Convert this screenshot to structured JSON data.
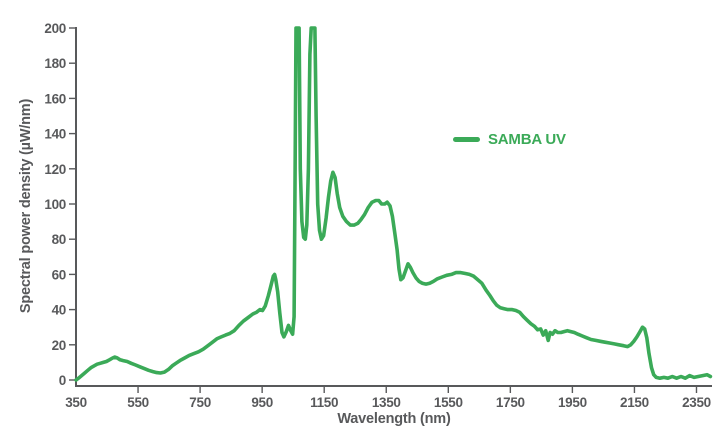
{
  "chart_data": {
    "type": "line",
    "title": "",
    "x_axis": {
      "label": "Wavelength (nm)",
      "min": 350,
      "max": 2400,
      "tick_labels": [
        350,
        550,
        750,
        950,
        1150,
        1350,
        1550,
        1750,
        1950,
        2150,
        2350
      ]
    },
    "y_axis": {
      "label": "Spectral power density (µW/nm)",
      "min": 0,
      "max": 200,
      "tick_labels": [
        0,
        20,
        40,
        60,
        80,
        100,
        120,
        140,
        160,
        180,
        200
      ]
    },
    "legend": {
      "position": "inside-upper-right",
      "entries": [
        "SAMBA UV"
      ]
    },
    "grid": "off",
    "annotations": "twin pump/Raman peaks near 1064 nm and 1114 nm exceed the 200 µW/nm axis limit and are clipped at the plot top",
    "series": [
      {
        "name": "SAMBA UV",
        "color": "#3BAA58",
        "points": [
          [
            350,
            0
          ],
          [
            358,
            1
          ],
          [
            368,
            2.5
          ],
          [
            378,
            4
          ],
          [
            388,
            5.5
          ],
          [
            398,
            7
          ],
          [
            408,
            8
          ],
          [
            418,
            9
          ],
          [
            428,
            9.5
          ],
          [
            438,
            10
          ],
          [
            448,
            10.5
          ],
          [
            458,
            11.5
          ],
          [
            468,
            12.5
          ],
          [
            475,
            13
          ],
          [
            483,
            12.5
          ],
          [
            492,
            11.5
          ],
          [
            502,
            11
          ],
          [
            515,
            10.5
          ],
          [
            528,
            9.5
          ],
          [
            542,
            8.5
          ],
          [
            556,
            7.5
          ],
          [
            570,
            6.5
          ],
          [
            584,
            5.5
          ],
          [
            598,
            4.8
          ],
          [
            610,
            4.2
          ],
          [
            622,
            4
          ],
          [
            635,
            4.5
          ],
          [
            648,
            6
          ],
          [
            660,
            8
          ],
          [
            672,
            9.5
          ],
          [
            685,
            11
          ],
          [
            700,
            12.5
          ],
          [
            715,
            14
          ],
          [
            730,
            15
          ],
          [
            745,
            16
          ],
          [
            760,
            17.5
          ],
          [
            775,
            19.5
          ],
          [
            790,
            21.5
          ],
          [
            805,
            23.5
          ],
          [
            818,
            24.5
          ],
          [
            832,
            25.5
          ],
          [
            846,
            26.5
          ],
          [
            860,
            28
          ],
          [
            875,
            31
          ],
          [
            890,
            33.5
          ],
          [
            905,
            35.5
          ],
          [
            920,
            37.5
          ],
          [
            932,
            38.5
          ],
          [
            943,
            40
          ],
          [
            951,
            39.5
          ],
          [
            960,
            42
          ],
          [
            970,
            48
          ],
          [
            979,
            54
          ],
          [
            986,
            59
          ],
          [
            990,
            60
          ],
          [
            994,
            57
          ],
          [
            1000,
            50
          ],
          [
            1007,
            38
          ],
          [
            1014,
            27
          ],
          [
            1020,
            24.5
          ],
          [
            1028,
            27.5
          ],
          [
            1035,
            31
          ],
          [
            1042,
            28
          ],
          [
            1048,
            26
          ],
          [
            1053,
            36
          ],
          [
            1056,
            110
          ],
          [
            1059,
            200
          ],
          [
            1069,
            200
          ],
          [
            1073,
            120
          ],
          [
            1078,
            90
          ],
          [
            1084,
            81
          ],
          [
            1089,
            80
          ],
          [
            1094,
            88
          ],
          [
            1099,
            120
          ],
          [
            1104,
            185
          ],
          [
            1108,
            200
          ],
          [
            1120,
            200
          ],
          [
            1124,
            150
          ],
          [
            1129,
            100
          ],
          [
            1135,
            85
          ],
          [
            1141,
            80
          ],
          [
            1148,
            82
          ],
          [
            1156,
            92
          ],
          [
            1164,
            104
          ],
          [
            1171,
            113
          ],
          [
            1178,
            118
          ],
          [
            1185,
            115
          ],
          [
            1192,
            106
          ],
          [
            1200,
            98
          ],
          [
            1210,
            93
          ],
          [
            1222,
            90
          ],
          [
            1234,
            88
          ],
          [
            1246,
            88
          ],
          [
            1258,
            89
          ],
          [
            1268,
            91
          ],
          [
            1280,
            94
          ],
          [
            1292,
            98
          ],
          [
            1304,
            101
          ],
          [
            1316,
            102
          ],
          [
            1326,
            102
          ],
          [
            1335,
            100
          ],
          [
            1345,
            100
          ],
          [
            1353,
            101
          ],
          [
            1362,
            99
          ],
          [
            1370,
            93
          ],
          [
            1378,
            83
          ],
          [
            1385,
            74
          ],
          [
            1391,
            63
          ],
          [
            1397,
            57
          ],
          [
            1404,
            58
          ],
          [
            1412,
            62
          ],
          [
            1420,
            66
          ],
          [
            1428,
            64
          ],
          [
            1436,
            61
          ],
          [
            1446,
            58
          ],
          [
            1456,
            56
          ],
          [
            1466,
            55
          ],
          [
            1478,
            54.5
          ],
          [
            1490,
            55
          ],
          [
            1502,
            56
          ],
          [
            1515,
            57.5
          ],
          [
            1530,
            58.5
          ],
          [
            1545,
            59.5
          ],
          [
            1560,
            60
          ],
          [
            1575,
            61
          ],
          [
            1590,
            61
          ],
          [
            1605,
            60.5
          ],
          [
            1618,
            60
          ],
          [
            1632,
            59
          ],
          [
            1645,
            57
          ],
          [
            1658,
            55
          ],
          [
            1672,
            51
          ],
          [
            1684,
            48
          ],
          [
            1695,
            45
          ],
          [
            1706,
            42.5
          ],
          [
            1718,
            41
          ],
          [
            1730,
            40.5
          ],
          [
            1742,
            40
          ],
          [
            1756,
            40
          ],
          [
            1768,
            39.5
          ],
          [
            1780,
            38.5
          ],
          [
            1792,
            36
          ],
          [
            1804,
            34
          ],
          [
            1816,
            32
          ],
          [
            1828,
            30.5
          ],
          [
            1838,
            28.5
          ],
          [
            1848,
            29
          ],
          [
            1856,
            25.5
          ],
          [
            1864,
            28
          ],
          [
            1872,
            22.5
          ],
          [
            1878,
            27
          ],
          [
            1886,
            26
          ],
          [
            1894,
            28
          ],
          [
            1903,
            27
          ],
          [
            1913,
            27
          ],
          [
            1923,
            27.5
          ],
          [
            1934,
            28
          ],
          [
            1945,
            27.5
          ],
          [
            1956,
            27
          ],
          [
            1968,
            26
          ],
          [
            1982,
            25
          ],
          [
            1996,
            24
          ],
          [
            2010,
            23
          ],
          [
            2025,
            22.5
          ],
          [
            2040,
            22
          ],
          [
            2055,
            21.5
          ],
          [
            2070,
            21
          ],
          [
            2085,
            20.5
          ],
          [
            2100,
            20
          ],
          [
            2115,
            19.5
          ],
          [
            2128,
            19
          ],
          [
            2138,
            20
          ],
          [
            2148,
            22
          ],
          [
            2158,
            24.5
          ],
          [
            2168,
            27.5
          ],
          [
            2176,
            30
          ],
          [
            2183,
            29
          ],
          [
            2190,
            24
          ],
          [
            2197,
            15
          ],
          [
            2205,
            7
          ],
          [
            2212,
            3
          ],
          [
            2220,
            1.5
          ],
          [
            2232,
            1
          ],
          [
            2245,
            1.5
          ],
          [
            2258,
            1
          ],
          [
            2272,
            2
          ],
          [
            2286,
            1
          ],
          [
            2300,
            2
          ],
          [
            2314,
            1
          ],
          [
            2328,
            2.5
          ],
          [
            2342,
            1.5
          ],
          [
            2356,
            2
          ],
          [
            2370,
            2.5
          ],
          [
            2384,
            3
          ],
          [
            2395,
            2
          ]
        ]
      }
    ]
  },
  "colors": {
    "line": "#3BAA58",
    "axis": "#58595B",
    "text": "#58595B",
    "background": "#FFFFFF"
  }
}
